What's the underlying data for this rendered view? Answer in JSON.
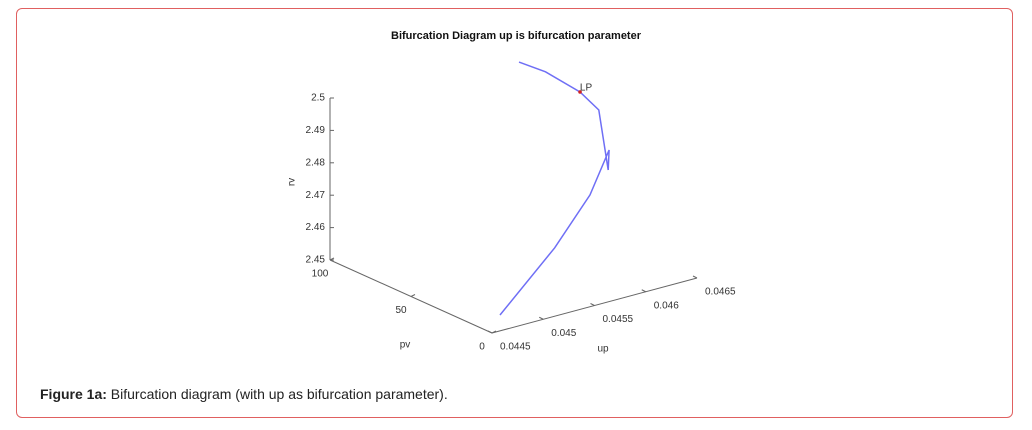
{
  "chart_data": {
    "type": "line3d",
    "title": "Bifurcation Diagram up is bifurcation parameter",
    "xlabel": "up",
    "ylabel": "pv",
    "zlabel": "rv",
    "xlim": [
      0.0445,
      0.0465
    ],
    "xticks": [
      0.0445,
      0.045,
      0.0455,
      0.046,
      0.0465
    ],
    "ylim": [
      0,
      100
    ],
    "yticks": [
      0,
      50,
      100
    ],
    "zlim": [
      2.45,
      2.5
    ],
    "zticks": [
      2.45,
      2.46,
      2.47,
      2.48,
      2.49,
      2.5
    ],
    "series": [
      {
        "color": "#6f6ff5",
        "x": [
          0.044921,
          0.04518,
          0.045517,
          0.0457,
          0.045792,
          0.0458,
          0.045614,
          0.04527,
          0.044736
        ],
        "y": [
          10,
          10,
          10,
          10,
          10,
          10,
          10,
          10,
          10
        ],
        "z": [
          2.5278,
          2.5226,
          2.5135,
          2.5064,
          2.4871,
          2.4932,
          2.4809,
          2.4675,
          2.4513
        ]
      }
    ],
    "annotation": {
      "text": "LP",
      "x": 0.045517,
      "y": 10,
      "z": 2.5135,
      "color": "#d02020"
    }
  },
  "caption": {
    "label": "Figure 1a:",
    "text": "Bifurcation diagram (with up as bifurcation parameter)."
  }
}
